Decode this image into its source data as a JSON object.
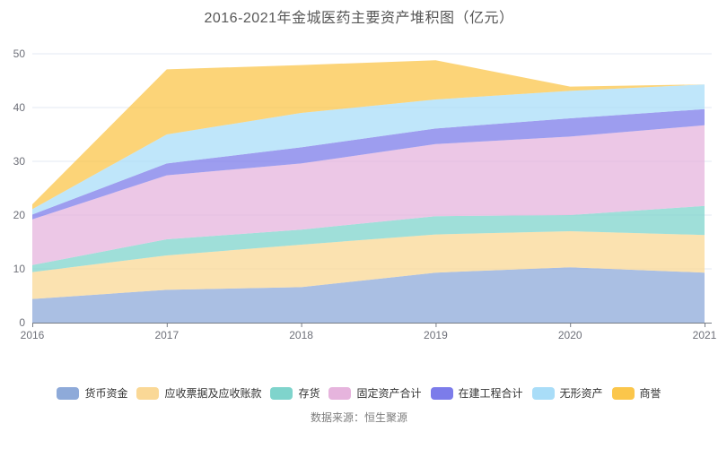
{
  "title": "2016-2021年金城医药主要资产堆积图（亿元）",
  "source_note": "数据来源：恒生聚源",
  "colors": {
    "grid_line": "#e3e8f3",
    "axis_line": "#777c85",
    "axis_label": "#6e7079",
    "legend_text": "#333333",
    "title_text": "#575757",
    "area_opacity": 0.75
  },
  "chart_data": {
    "type": "area",
    "stacked": true,
    "title": "2016-2021年金城医药主要资产堆积图（亿元）",
    "xlabel": "",
    "ylabel": "",
    "ylim": [
      0,
      50
    ],
    "yticks": [
      0,
      10,
      20,
      30,
      40,
      50
    ],
    "grid": true,
    "legend_position": "bottom",
    "categories": [
      "2016",
      "2017",
      "2018",
      "2019",
      "2020",
      "2021"
    ],
    "series": [
      {
        "name": "货币资金",
        "color": "#8eaad9",
        "values": [
          4.4,
          6.1,
          6.6,
          9.3,
          10.3,
          9.3
        ]
      },
      {
        "name": "应收票据及应收账款",
        "color": "#fad896",
        "values": [
          5.0,
          6.4,
          7.9,
          7.1,
          6.7,
          7.0
        ]
      },
      {
        "name": "存货",
        "color": "#7fd4cc",
        "values": [
          1.3,
          3.0,
          2.8,
          3.4,
          3.0,
          5.4
        ]
      },
      {
        "name": "固定资产合计",
        "color": "#e6b4dd",
        "values": [
          8.5,
          11.9,
          12.3,
          13.4,
          14.6,
          15.0
        ]
      },
      {
        "name": "在建工程合计",
        "color": "#7c7cea",
        "values": [
          0.9,
          2.2,
          3.0,
          2.9,
          3.4,
          3.0
        ]
      },
      {
        "name": "无形资产",
        "color": "#a9ddf8",
        "values": [
          1.0,
          5.4,
          6.4,
          5.4,
          5.1,
          4.6
        ]
      },
      {
        "name": "商誉",
        "color": "#fbc64b",
        "values": [
          0.9,
          12.1,
          8.9,
          7.3,
          0.8,
          0.0
        ]
      }
    ]
  }
}
